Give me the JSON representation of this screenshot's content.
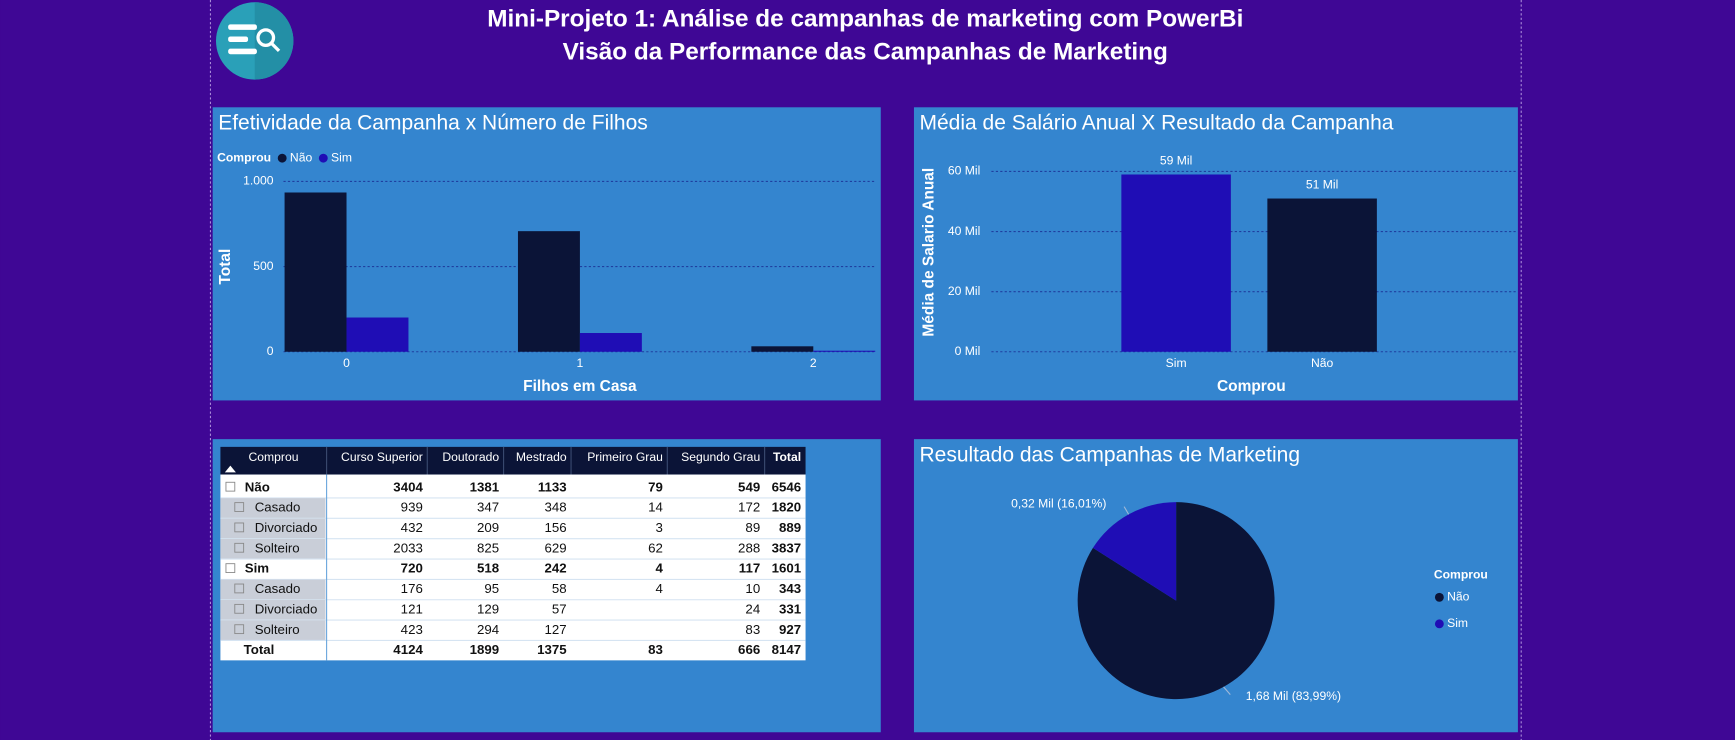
{
  "header": {
    "title": "Mini-Projeto 1: Análise de campanhas de marketing com PowerBi",
    "subtitle": "Visão da Performance das Campanhas de Marketing"
  },
  "chart_data": [
    {
      "type": "bar",
      "title": "Efetividade da Campanha x Número de Filhos",
      "legend_title": "Comprou",
      "categories": [
        "0",
        "1",
        "2"
      ],
      "series": [
        {
          "name": "Não",
          "color": "#0b1437",
          "values": [
            935,
            708,
            32
          ]
        },
        {
          "name": "Sim",
          "color": "#1f0db5",
          "values": [
            201,
            110,
            6
          ]
        }
      ],
      "xlabel": "Filhos em Casa",
      "ylabel": "Total",
      "ylim": [
        0,
        1030
      ],
      "yticks": [
        0,
        500,
        {
          "value": 1000,
          "label": "1.000"
        }
      ],
      "grid": true
    },
    {
      "type": "bar",
      "title": "Média de Salário Anual X Resultado da Campanha",
      "categories": [
        "Sim",
        "Não"
      ],
      "values": [
        59000,
        51000
      ],
      "value_labels": [
        "59 Mil",
        "51 Mil"
      ],
      "colors": [
        "#1f0db5",
        "#0b1437"
      ],
      "xlabel": "Comprou",
      "ylabel": "Média de Salario Anual",
      "ylim": [
        0,
        62000
      ],
      "yticks": [
        {
          "value": 0,
          "label": "0 Mil"
        },
        {
          "value": 20000,
          "label": "20 Mil"
        },
        {
          "value": 40000,
          "label": "40 Mil"
        },
        {
          "value": 60000,
          "label": "60 Mil"
        }
      ],
      "grid": true
    },
    {
      "type": "pie",
      "title": "Resultado das Campanhas de Marketing",
      "legend_title": "Comprou",
      "categories": [
        "Não",
        "Sim"
      ],
      "values": [
        83.99,
        16.01
      ],
      "value_labels": [
        "1,68 Mil (83,99%)",
        "0,32 Mil (16,01%)"
      ],
      "colors": [
        "#0b1437",
        "#1f0db5"
      ]
    }
  ],
  "table": {
    "columns": [
      "Comprou",
      "Curso Superior",
      "Doutorado",
      "Mestrado",
      "Primeiro Grau",
      "Segundo Grau",
      "Total"
    ],
    "groups": [
      {
        "label": "Não",
        "values": [
          3404,
          1381,
          1133,
          79,
          549,
          6546
        ],
        "children": [
          {
            "label": "Casado",
            "values": [
              939,
              347,
              348,
              14,
              172,
              1820
            ]
          },
          {
            "label": "Divorciado",
            "values": [
              432,
              209,
              156,
              3,
              89,
              889
            ]
          },
          {
            "label": "Solteiro",
            "values": [
              2033,
              825,
              629,
              62,
              288,
              3837
            ]
          }
        ]
      },
      {
        "label": "Sim",
        "values": [
          720,
          518,
          242,
          4,
          117,
          1601
        ],
        "children": [
          {
            "label": "Casado",
            "values": [
              176,
              95,
              58,
              4,
              10,
              343
            ]
          },
          {
            "label": "Divorciado",
            "values": [
              121,
              129,
              57,
              null,
              24,
              331
            ]
          },
          {
            "label": "Solteiro",
            "values": [
              423,
              294,
              127,
              null,
              83,
              927
            ]
          }
        ]
      }
    ],
    "total": {
      "label": "Total",
      "values": [
        4124,
        1899,
        1375,
        83,
        666,
        8147
      ]
    }
  }
}
